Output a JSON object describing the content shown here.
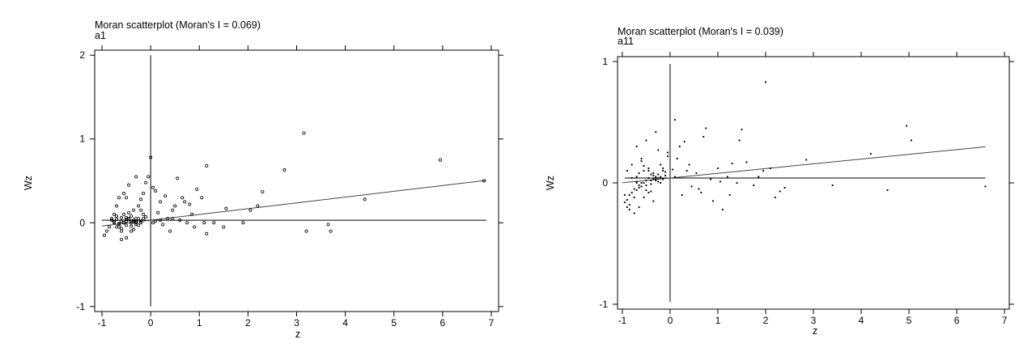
{
  "chart_data": [
    {
      "type": "scatter",
      "title": "Moran scatterplot (Moran's I = 0.069)",
      "subtitle": "a1",
      "xlabel": "z",
      "ylabel": "Wz",
      "xlim": [
        -1.15,
        7.15
      ],
      "ylim": [
        -1.06,
        2.06
      ],
      "xticks": [
        -1,
        0,
        1,
        2,
        3,
        4,
        5,
        6,
        7
      ],
      "yticks": [
        -1,
        0,
        1,
        2
      ],
      "grid": false,
      "marker": "open-circle",
      "mean_z": 0,
      "mean_wz": 0.03,
      "fit_line": {
        "x": [
          -1,
          6.9
        ],
        "y": -0.0,
        "slope": 0.069,
        "intercept": 0.03
      },
      "x": [
        0.0,
        1.15,
        2.75,
        3.15,
        5.95,
        6.85,
        4.4,
        3.2,
        3.7,
        3.65,
        2.05,
        2.2,
        2.3,
        1.9,
        1.55,
        1.5,
        1.15,
        1.1,
        1.05,
        0.95,
        0.85,
        0.7,
        0.55,
        0.45,
        0.4,
        0.3,
        0.2,
        0.1,
        0.05,
        0.9,
        0.75,
        0.6,
        0.5,
        0.35,
        0.25,
        0.15,
        0.45,
        0.65,
        0.8,
        1.3,
        -0.3,
        -0.45,
        -0.55,
        -0.65,
        -0.7,
        -0.75,
        -0.8,
        -0.85,
        -0.9,
        -0.95,
        -0.6,
        -0.5,
        -0.4,
        -0.35,
        -0.25,
        -0.2,
        -0.15,
        -0.1,
        -0.05,
        -0.3,
        -0.4,
        -0.5,
        -0.6,
        -0.7,
        -0.55,
        -0.45,
        -0.35,
        -0.25,
        -0.15,
        -0.65,
        -0.75,
        -0.8,
        -0.5,
        -0.3,
        -0.2,
        -0.6,
        -0.4,
        -0.1,
        -0.55,
        -0.45,
        -0.35,
        -0.65,
        -0.5,
        -0.6,
        -0.7,
        -0.4,
        -0.3,
        -0.2,
        -0.45,
        -0.55,
        -0.25,
        -0.35,
        -0.15,
        -0.7,
        -0.6,
        -0.5,
        -0.4,
        -0.75,
        -0.65,
        -0.3,
        0.05,
        0.1,
        0.2,
        -0.2,
        -0.5
      ],
      "y": [
        0.78,
        0.68,
        0.63,
        1.07,
        0.75,
        0.5,
        0.28,
        -0.1,
        -0.1,
        -0.02,
        0.15,
        0.2,
        0.37,
        0.0,
        0.17,
        -0.05,
        -0.13,
        0.0,
        0.3,
        0.4,
        0.1,
        0.25,
        0.53,
        0.15,
        -0.1,
        0.32,
        0.25,
        0.38,
        0.42,
        -0.05,
        0.0,
        0.03,
        0.2,
        0.05,
        -0.02,
        0.12,
        0.05,
        0.3,
        0.22,
        0.0,
        0.55,
        0.45,
        0.35,
        0.3,
        0.2,
        0.1,
        0.05,
        -0.05,
        -0.1,
        -0.15,
        -0.2,
        -0.18,
        -0.1,
        -0.08,
        0.05,
        0.28,
        0.35,
        0.48,
        0.55,
        0.0,
        0.02,
        0.04,
        0.06,
        0.08,
        0.1,
        0.12,
        0.15,
        0.2,
        0.1,
        -0.02,
        0.0,
        0.03,
        -0.03,
        0.01,
        0.0,
        0.02,
        -0.04,
        0.07,
        0.0,
        0.05,
        0.03,
        -0.01,
        0.06,
        -0.07,
        -0.05,
        0.08,
        -0.02,
        0.02,
        0.04,
        0.0,
        -0.03,
        0.01,
        0.05,
        0.04,
        -0.1,
        0.02,
        0.0,
        0.01,
        -0.05,
        0.05,
        0.0,
        0.02,
        0.03,
        0.15,
        0.3
      ]
    },
    {
      "type": "scatter",
      "title": "Moran scatterplot (Moran's I = 0.039)",
      "subtitle": "a11",
      "xlabel": "z",
      "ylabel": "Wz",
      "xlim": [
        -1.1,
        7.1
      ],
      "ylim": [
        -1.04,
        1.04
      ],
      "xticks": [
        -1,
        0,
        1,
        2,
        3,
        4,
        5,
        6,
        7
      ],
      "yticks": [
        -1,
        0,
        1
      ],
      "grid": false,
      "marker": "dot",
      "mean_z": 0,
      "mean_wz": 0.04,
      "fit_line": {
        "slope": 0.039,
        "intercept": 0.04,
        "x": [
          -1,
          6.6
        ]
      },
      "x": [
        2.0,
        4.95,
        5.05,
        4.2,
        2.85,
        1.5,
        1.45,
        0.75,
        0.7,
        0.3,
        0.1,
        0.2,
        0.4,
        0.55,
        0.85,
        1.0,
        1.2,
        1.3,
        1.6,
        1.75,
        2.1,
        2.2,
        2.3,
        2.4,
        3.4,
        4.55,
        6.6,
        1.1,
        0.9,
        0.65,
        0.45,
        0.25,
        1.25,
        1.4,
        1.85,
        1.95,
        0.6,
        0.35,
        0.15,
        1.05,
        -0.3,
        -0.5,
        -0.7,
        -0.9,
        -0.95,
        -0.85,
        -0.75,
        -0.65,
        -0.55,
        -0.45,
        -0.35,
        -0.25,
        -0.15,
        -0.05,
        -0.6,
        -0.4,
        -0.2,
        -0.8,
        -0.7,
        -0.5,
        -0.3,
        -0.1,
        -0.65,
        -0.55,
        -0.45,
        -0.35,
        -0.25,
        -0.75,
        -0.85,
        -0.9,
        -0.6,
        -0.4,
        -0.2,
        -0.5,
        -0.3,
        -0.7,
        -0.8,
        -0.55,
        -0.45,
        -0.35,
        -0.65,
        -0.25,
        -0.15,
        -0.75,
        -0.6,
        -0.5,
        -0.4,
        -0.3,
        -0.2,
        -0.1,
        -0.85,
        -0.95,
        -0.7,
        -0.55,
        -0.45,
        -0.35,
        -0.65,
        -0.25,
        -0.05,
        0.05,
        0.1,
        -0.15,
        -0.6,
        -0.4,
        -0.8,
        -0.9,
        -0.7
      ],
      "y": [
        0.83,
        0.47,
        0.35,
        0.24,
        0.19,
        0.44,
        0.35,
        0.45,
        0.38,
        0.34,
        0.52,
        0.3,
        0.15,
        0.08,
        0.03,
        0.12,
        0.05,
        0.16,
        0.17,
        -0.02,
        0.12,
        -0.12,
        -0.07,
        -0.04,
        -0.02,
        -0.06,
        -0.03,
        -0.22,
        -0.15,
        -0.08,
        -0.03,
        -0.1,
        -0.1,
        0.0,
        0.05,
        0.1,
        -0.05,
        0.1,
        0.2,
        0.01,
        0.42,
        0.35,
        0.3,
        0.1,
        -0.1,
        -0.18,
        -0.25,
        -0.2,
        -0.12,
        -0.08,
        -0.15,
        0.27,
        0.1,
        0.22,
        0.0,
        0.02,
        0.05,
        0.04,
        0.01,
        -0.02,
        0.03,
        0.06,
        0.08,
        0.1,
        0.12,
        0.06,
        0.04,
        -0.05,
        -0.1,
        -0.14,
        -0.03,
        0.07,
        0.15,
        -0.06,
        0.02,
        0.05,
        -0.08,
        0.0,
        0.1,
        0.03,
        -0.04,
        0.07,
        0.12,
        -0.12,
        0.18,
        0.02,
        -0.01,
        0.05,
        0.0,
        0.09,
        -0.22,
        -0.16,
        -0.06,
        0.14,
        0.04,
        0.08,
        -0.02,
        0.01,
        0.25,
        0.11,
        0.05,
        0.03,
        0.2,
        -0.07,
        0.15,
        -0.2,
        0.0
      ]
    }
  ]
}
